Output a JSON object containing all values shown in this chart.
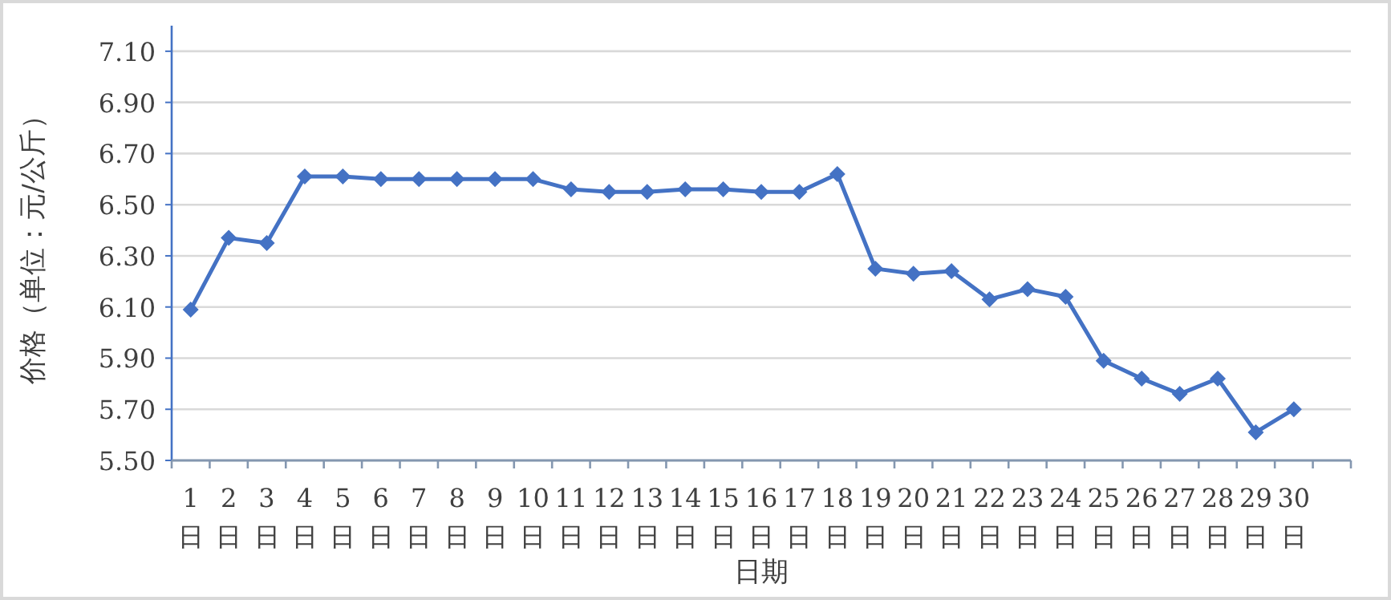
{
  "chart_data": {
    "type": "line",
    "xlabel": "日期",
    "ylabel": "价格（单位：元/公斤）",
    "categories": [
      "1日",
      "2日",
      "3日",
      "4日",
      "5日",
      "6日",
      "7日",
      "8日",
      "9日",
      "10日",
      "11日",
      "12日",
      "13日",
      "14日",
      "15日",
      "16日",
      "17日",
      "18日",
      "19日",
      "20日",
      "21日",
      "22日",
      "23日",
      "24日",
      "25日",
      "26日",
      "27日",
      "28日",
      "29日",
      "30日",
      null
    ],
    "series": [
      {
        "color": "#4472c4",
        "values": [
          6.09,
          6.37,
          6.35,
          6.61,
          6.61,
          6.6,
          6.6,
          6.6,
          6.6,
          6.6,
          6.56,
          6.55,
          6.55,
          6.56,
          6.56,
          6.55,
          6.55,
          6.62,
          6.25,
          6.23,
          6.24,
          6.13,
          6.17,
          6.14,
          5.89,
          5.82,
          5.76,
          5.82,
          5.61,
          5.7,
          null
        ]
      }
    ],
    "ylim": [
      5.5,
      7.2
    ],
    "yticks": [
      {
        "value": 5.5,
        "label": "5.50"
      },
      {
        "value": 5.7,
        "label": "5.70"
      },
      {
        "value": 5.9,
        "label": "5.90"
      },
      {
        "value": 6.1,
        "label": "6.10"
      },
      {
        "value": 6.3,
        "label": "6.30"
      },
      {
        "value": 6.5,
        "label": "6.50"
      },
      {
        "value": 6.7,
        "label": "6.70"
      },
      {
        "value": 6.9,
        "label": "6.90"
      },
      {
        "value": 7.1,
        "label": "7.10"
      }
    ],
    "grid": "y",
    "marker": "diamond",
    "line_style": "solid"
  }
}
